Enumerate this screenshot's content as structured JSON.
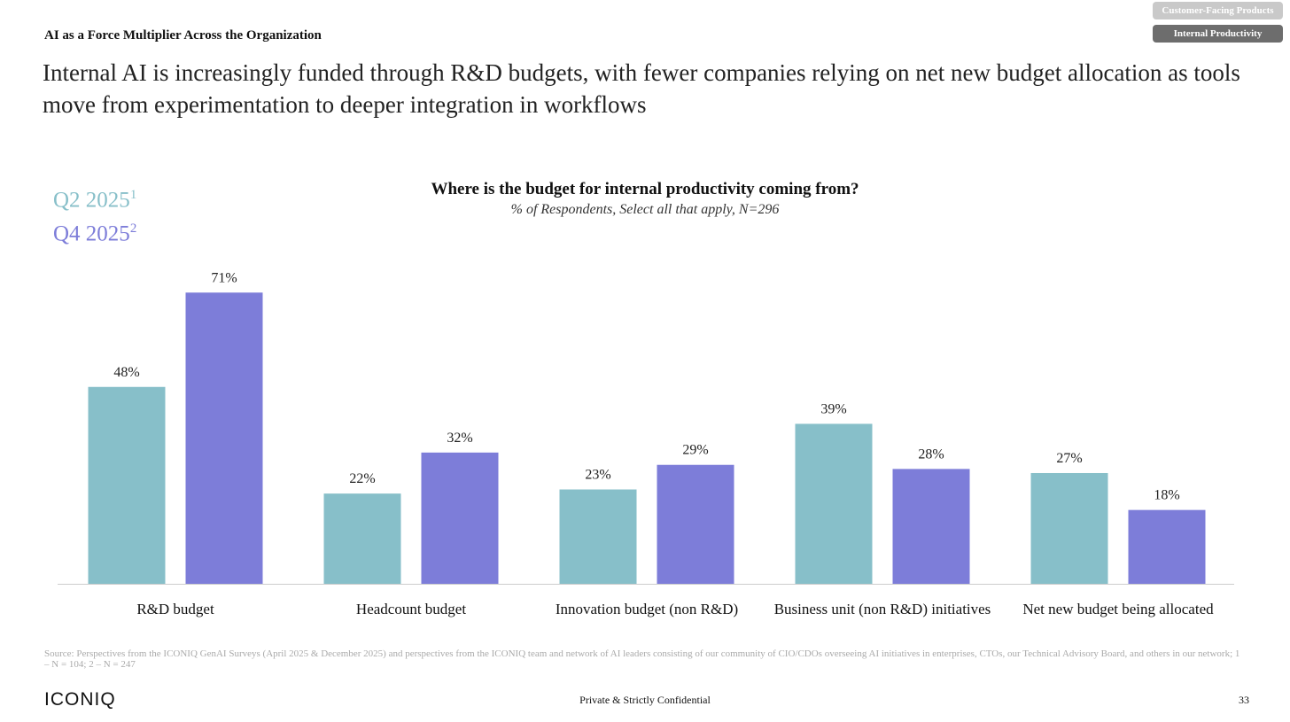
{
  "tabs": [
    {
      "label": "Customer-Facing Products",
      "active": false
    },
    {
      "label": "Internal Productivity",
      "active": true
    }
  ],
  "section_title": "AI as a Force Multiplier Across the Organization",
  "headline": "Internal AI is increasingly funded through R&D budgets, with fewer companies relying on net new budget allocation as tools move from experimentation to deeper integration in workflows",
  "legend": [
    {
      "label": "Q2 2025",
      "sup": "1",
      "color": "#87bfc9"
    },
    {
      "label": "Q4 2025",
      "sup": "2",
      "color": "#7d7dd9"
    }
  ],
  "chart_data": {
    "type": "bar",
    "title": "Where is the budget for internal productivity coming from?",
    "subtitle": "% of Respondents, Select all that apply, N=296",
    "categories": [
      "R&D budget",
      "Headcount budget",
      "Innovation budget (non R&D)",
      "Business unit (non R&D) initiatives",
      "Net new budget being allocated"
    ],
    "series": [
      {
        "name": "Q2 2025",
        "color": "#87bfc9",
        "values": [
          48,
          22,
          23,
          39,
          27
        ]
      },
      {
        "name": "Q4 2025",
        "color": "#7d7dd9",
        "values": [
          71,
          32,
          29,
          28,
          18
        ]
      }
    ],
    "ylim": [
      0,
      75
    ],
    "value_suffix": "%",
    "grid": false,
    "legend_position": "top-left"
  },
  "footer": {
    "source": "Source: Perspectives from the ICONIQ GenAI Surveys (April 2025 & December 2025) and perspectives from the ICONIQ team and network of AI leaders consisting of our community of CIO/CDOs overseeing AI initiatives in enterprises, CTOs, our Technical Advisory Board, and others in our network; 1 – N = 104; 2 – N = 247",
    "logo": "ICONIQ",
    "confidential": "Private & Strictly Confidential",
    "page": "33"
  }
}
